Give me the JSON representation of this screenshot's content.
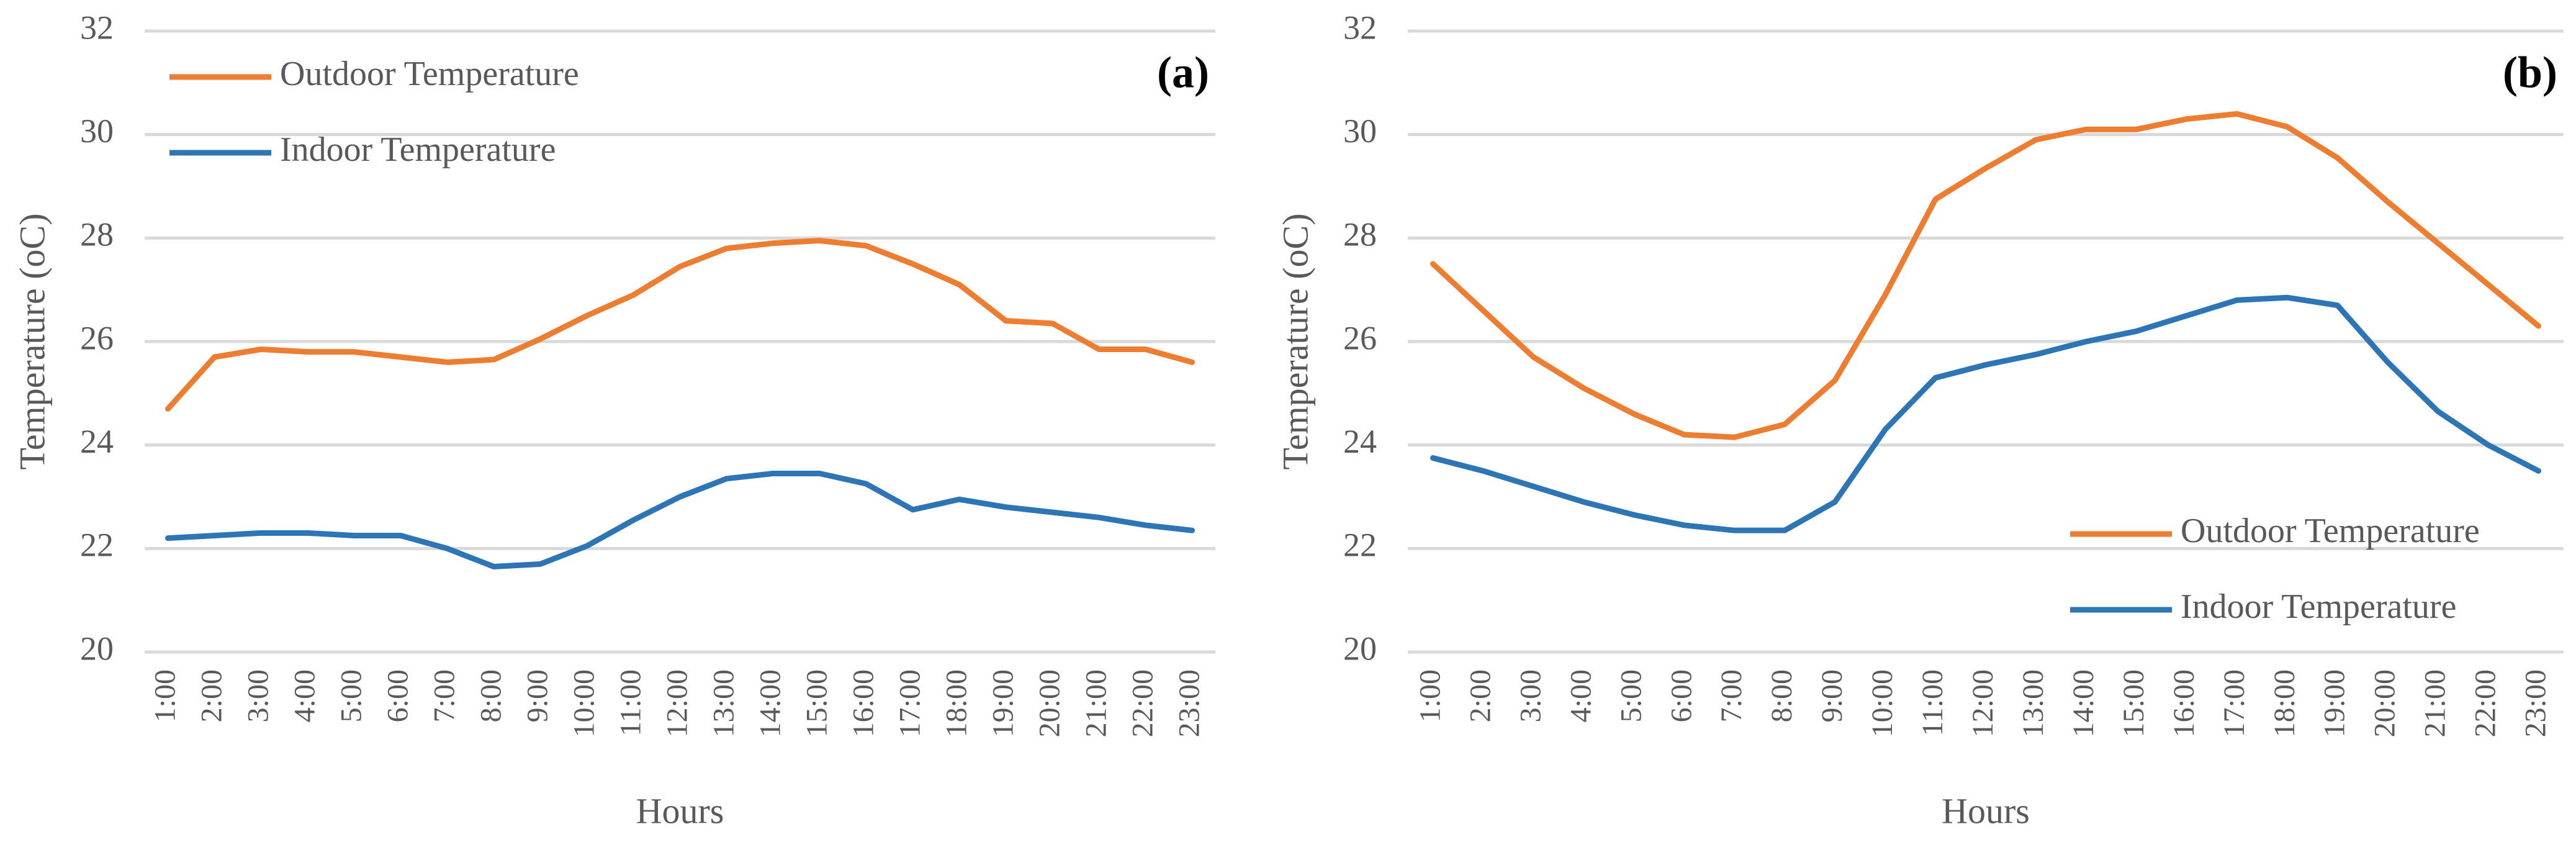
{
  "chart_data": [
    {
      "type": "line",
      "title": "(a)",
      "y_label": "Temperature (oC)",
      "x_label": "Hours",
      "categories": [
        "1:00",
        "2:00",
        "3:00",
        "4:00",
        "5:00",
        "6:00",
        "7:00",
        "8:00",
        "9:00",
        "10:00",
        "11:00",
        "12:00",
        "13:00",
        "14:00",
        "15:00",
        "16:00",
        "17:00",
        "18:00",
        "19:00",
        "20:00",
        "21:00",
        "22:00",
        "23:00"
      ],
      "series": [
        {
          "name": "Outdoor Temperature",
          "color": "#ed7d31",
          "values": [
            24.7,
            25.7,
            25.85,
            25.8,
            25.8,
            25.7,
            25.6,
            25.65,
            26.05,
            26.5,
            26.9,
            27.45,
            27.8,
            27.9,
            27.95,
            27.85,
            27.5,
            27.1,
            26.4,
            26.35,
            25.85,
            25.85,
            25.6
          ]
        },
        {
          "name": "Indoor Temperature",
          "color": "#2e75b6",
          "values": [
            22.2,
            22.25,
            22.3,
            22.3,
            22.25,
            22.25,
            22.0,
            21.65,
            21.7,
            22.05,
            22.55,
            23.0,
            23.35,
            23.45,
            23.45,
            23.25,
            22.75,
            22.95,
            22.8,
            22.7,
            22.6,
            22.45,
            22.35
          ]
        }
      ],
      "ylim": [
        20,
        32
      ],
      "yticks": [
        20,
        22,
        24,
        26,
        28,
        30,
        32
      ],
      "grid": true,
      "legend": "upper left"
    },
    {
      "type": "line",
      "title": "(b)",
      "y_label": "Temperature (oC)",
      "x_label": "Hours",
      "categories": [
        "1:00",
        "2:00",
        "3:00",
        "4:00",
        "5:00",
        "6:00",
        "7:00",
        "8:00",
        "9:00",
        "10:00",
        "11:00",
        "12:00",
        "13:00",
        "14:00",
        "15:00",
        "16:00",
        "17:00",
        "18:00",
        "19:00",
        "20:00",
        "21:00",
        "22:00",
        "23:00"
      ],
      "series": [
        {
          "name": "Outdoor Temperature",
          "color": "#ed7d31",
          "values": [
            27.5,
            26.6,
            25.7,
            25.1,
            24.6,
            24.2,
            24.15,
            24.4,
            25.25,
            26.9,
            28.75,
            29.35,
            29.9,
            30.1,
            30.1,
            30.3,
            30.4,
            30.15,
            29.55,
            28.7,
            27.9,
            27.1,
            26.3
          ]
        },
        {
          "name": "Indoor Temperature",
          "color": "#2e75b6",
          "values": [
            23.75,
            23.5,
            23.2,
            22.9,
            22.65,
            22.45,
            22.35,
            22.35,
            22.9,
            24.3,
            25.3,
            25.55,
            25.75,
            26.0,
            26.2,
            26.5,
            26.8,
            26.85,
            26.7,
            25.6,
            24.65,
            24.0,
            23.5
          ]
        }
      ],
      "ylim": [
        20,
        32
      ],
      "yticks": [
        20,
        22,
        24,
        26,
        28,
        30,
        32
      ],
      "grid": true,
      "legend": "lower right"
    }
  ]
}
